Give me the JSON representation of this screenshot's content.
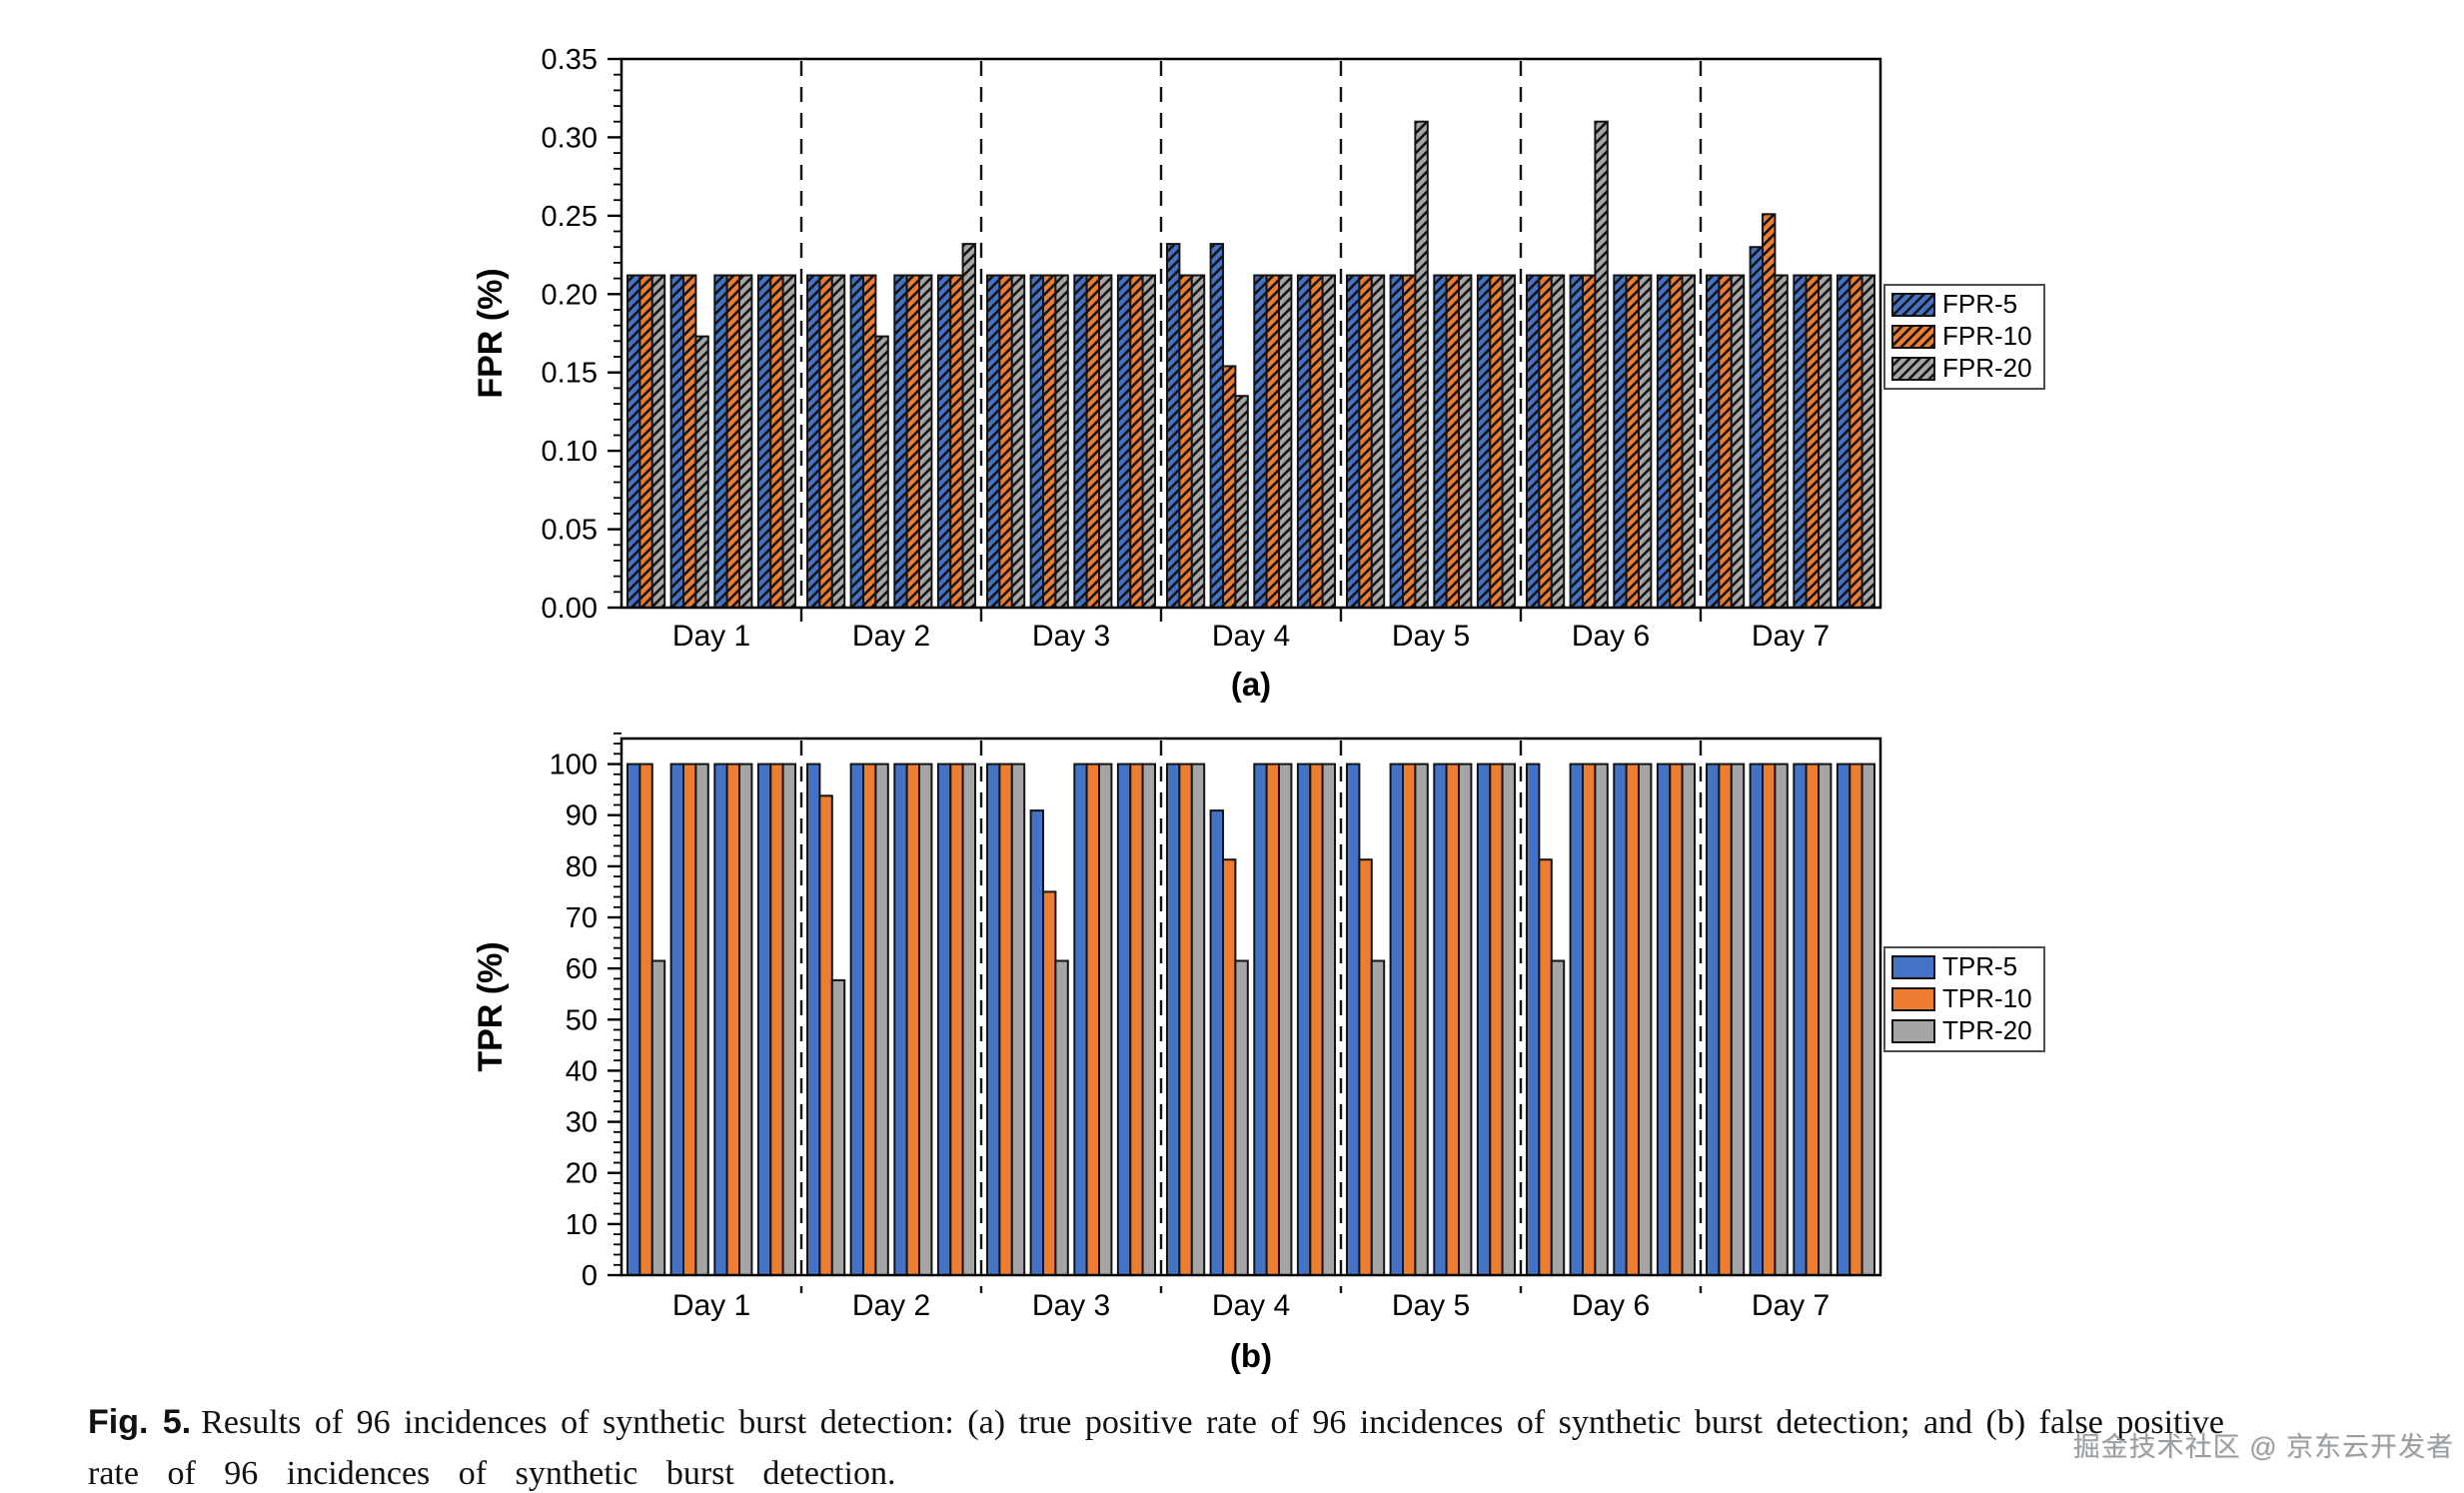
{
  "figure": {
    "caption_prefix": "Fig. 5.",
    "caption_line1": "Results of 96 incidences of synthetic burst detection: (a) true positive rate of 96 incidences of synthetic burst detection; and (b) false positive",
    "caption_line2": "rate of 96 incidences of synthetic burst detection.",
    "watermark": "掘金技术社区 @ 京东云开发者"
  },
  "colors": {
    "series_blue": "#4472c4",
    "series_orange": "#ed7d31",
    "series_gray": "#a5a5a5",
    "bar_outline": "#141414",
    "legend_border": "#4d4d4d"
  },
  "chart_data": [
    {
      "id": "fpr",
      "type": "bar",
      "panel_label": "(a)",
      "ylabel": "FPR (%)",
      "xlabel": "",
      "ylim": [
        0,
        0.35
      ],
      "ytick_max": 0.35,
      "ytick_step": 0.05,
      "ytick_minor_step": 0.01,
      "ytick_decimals": 2,
      "grid": false,
      "legend_position": "right",
      "hatched": true,
      "groups_per_day": 4,
      "categories": [
        "Day 1",
        "Day 2",
        "Day 3",
        "Day 4",
        "Day 5",
        "Day 6",
        "Day 7"
      ],
      "series": [
        {
          "name": "FPR-5",
          "values": [
            0.212,
            0.212,
            0.212,
            0.212,
            0.212,
            0.212,
            0.212,
            0.212,
            0.212,
            0.212,
            0.212,
            0.212,
            0.232,
            0.232,
            0.212,
            0.212,
            0.212,
            0.212,
            0.212,
            0.212,
            0.212,
            0.212,
            0.212,
            0.212,
            0.212,
            0.23,
            0.212,
            0.212
          ]
        },
        {
          "name": "FPR-10",
          "values": [
            0.212,
            0.212,
            0.212,
            0.212,
            0.212,
            0.212,
            0.212,
            0.212,
            0.212,
            0.212,
            0.212,
            0.212,
            0.212,
            0.154,
            0.212,
            0.212,
            0.212,
            0.212,
            0.212,
            0.212,
            0.212,
            0.212,
            0.212,
            0.212,
            0.212,
            0.251,
            0.212,
            0.212
          ]
        },
        {
          "name": "FPR-20",
          "values": [
            0.212,
            0.173,
            0.212,
            0.212,
            0.212,
            0.173,
            0.212,
            0.232,
            0.212,
            0.212,
            0.212,
            0.212,
            0.212,
            0.135,
            0.212,
            0.212,
            0.212,
            0.31,
            0.212,
            0.212,
            0.212,
            0.31,
            0.212,
            0.212,
            0.212,
            0.212,
            0.212,
            0.212
          ]
        }
      ]
    },
    {
      "id": "tpr",
      "type": "bar",
      "panel_label": "(b)",
      "ylabel": "TPR (%)",
      "xlabel": "",
      "ylim": [
        0,
        105
      ],
      "ytick_max": 100,
      "ytick_step": 10,
      "ytick_minor_step": 2,
      "ytick_decimals": 0,
      "grid": false,
      "legend_position": "right",
      "hatched": false,
      "groups_per_day": 4,
      "categories": [
        "Day 1",
        "Day 2",
        "Day 3",
        "Day 4",
        "Day 5",
        "Day 6",
        "Day 7"
      ],
      "series": [
        {
          "name": "TPR-5",
          "values": [
            100,
            100,
            100,
            100,
            100,
            100,
            100,
            100,
            100,
            90.9,
            100,
            100,
            100,
            90.9,
            100,
            100,
            100,
            100,
            100,
            100,
            100,
            100,
            100,
            100,
            100,
            100,
            100,
            100
          ]
        },
        {
          "name": "TPR-10",
          "values": [
            100,
            100,
            100,
            100,
            93.8,
            100,
            100,
            100,
            100,
            75,
            100,
            100,
            100,
            81.3,
            100,
            100,
            81.3,
            100,
            100,
            100,
            81.3,
            100,
            100,
            100,
            100,
            100,
            100,
            100
          ]
        },
        {
          "name": "TPR-20",
          "values": [
            61.5,
            100,
            100,
            100,
            57.7,
            100,
            100,
            100,
            100,
            61.5,
            100,
            100,
            100,
            61.5,
            100,
            100,
            61.5,
            100,
            100,
            100,
            61.5,
            100,
            100,
            100,
            100,
            100,
            100,
            100
          ]
        }
      ]
    }
  ]
}
